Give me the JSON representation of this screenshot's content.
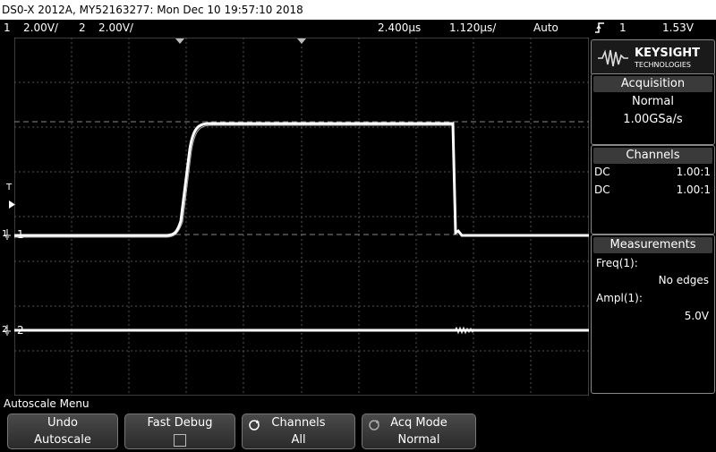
{
  "title": "DS0-X 2012A, MY52163277: Mon Dec 10 19:57:10 2018",
  "status": {
    "ch1_num": "1",
    "ch1_scale": "2.00V/",
    "ch2_num": "2",
    "ch2_scale": "2.00V/",
    "time_offset": "2.400μs",
    "time_scale": "1.120μs/",
    "trigger_mode": "Auto",
    "trigger_icon": "rising-edge-icon",
    "trigger_source": "1",
    "trigger_level": "1.53V"
  },
  "markers": {
    "trigger_t": "T",
    "ch1_label": "1",
    "ch2_label": "2"
  },
  "logo": {
    "brand": "KEYSIGHT",
    "sub": "TECHNOLOGIES"
  },
  "acquisition": {
    "header": "Acquisition",
    "mode": "Normal",
    "rate": "1.00GSa/s"
  },
  "channels": {
    "header": "Channels",
    "rows": [
      {
        "coupling": "DC",
        "probe": "1.00:1"
      },
      {
        "coupling": "DC",
        "probe": "1.00:1"
      }
    ]
  },
  "measurements": {
    "header": "Measurements",
    "items": [
      {
        "label": "Freq(1):",
        "value": "No edges"
      },
      {
        "label": "Ampl(1):",
        "value": "5.0V"
      }
    ]
  },
  "menu": {
    "title": "Autoscale Menu",
    "softkeys": [
      {
        "line1": "Undo",
        "line2": "Autoscale"
      },
      {
        "line1": "Fast Debug",
        "line2": ""
      },
      {
        "line1": "Channels",
        "line2": "All"
      },
      {
        "line1": "Acq Mode",
        "line2": "Normal"
      }
    ]
  },
  "colors": {
    "background": "#000000",
    "trace": "#ffffff",
    "grid": "#666666",
    "panel_header": "#3a3a3a"
  }
}
